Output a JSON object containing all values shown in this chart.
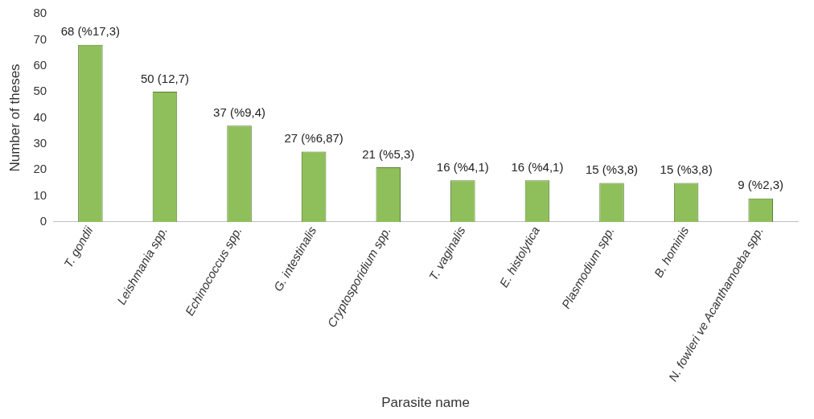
{
  "chart_data": {
    "type": "bar",
    "xlabel": "Parasite name",
    "ylabel": "Number of theses",
    "categories": [
      "T. gondii",
      "Leishmania spp.",
      "Echinococcus spp.",
      "G. intestinalis",
      "Cryptosporidium spp.",
      "T. vaginalis",
      "E. histolytica",
      "Plasmodium spp.",
      "B. hominis",
      "N. fowleri ve Acanthamoeba spp."
    ],
    "values": [
      68,
      50,
      37,
      27,
      21,
      16,
      16,
      15,
      15,
      9
    ],
    "value_labels": [
      "68 (%17,3)",
      "50 (12,7)",
      "37 (%9,4)",
      "27 (%6,87)",
      "21 (%5,3)",
      "16 (%4,1)",
      "16 (%4,1)",
      "15 (%3,8)",
      "15 (%3,8)",
      "9 (%2,3)"
    ],
    "color": "#8fbf5a",
    "ylim": [
      0,
      80
    ],
    "yticks": [
      0,
      10,
      20,
      30,
      40,
      50,
      60,
      70,
      80
    ],
    "grid": false,
    "legend": false
  }
}
